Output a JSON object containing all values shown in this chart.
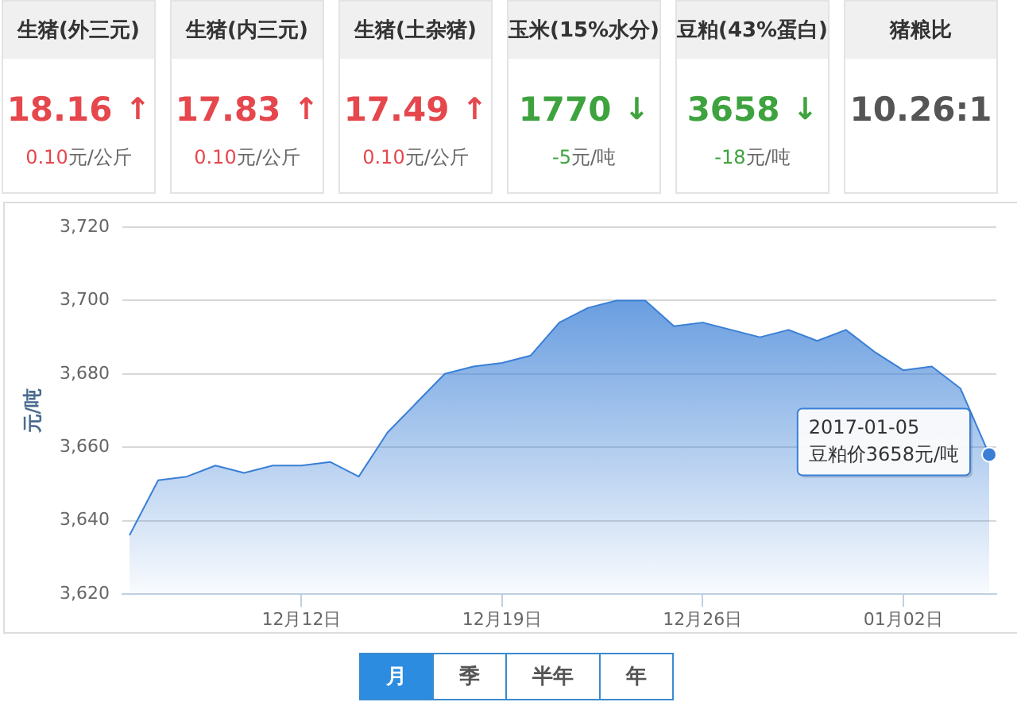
{
  "chart_data": [
    {
      "type": "other",
      "title": "生猪(外三元)",
      "annotations": [
        "18.16",
        "↑",
        "0.10元/公斤"
      ],
      "color": "#e5474d"
    },
    {
      "type": "other",
      "title": "生猪(内三元)",
      "annotations": [
        "17.83",
        "↑",
        "0.10元/公斤"
      ],
      "color": "#e5474d"
    },
    {
      "type": "other",
      "title": "生猪(土杂猪)",
      "annotations": [
        "17.49",
        "↑",
        "0.10元/公斤"
      ],
      "color": "#e5474d"
    },
    {
      "type": "other",
      "title": "玉米(15%水分)",
      "annotations": [
        "1770",
        "↓",
        "-5元/吨"
      ],
      "color": "#3ea33e"
    },
    {
      "type": "other",
      "title": "豆粕(43%蛋白)",
      "annotations": [
        "3658",
        "↓",
        "-18元/吨"
      ],
      "color": "#3ea33e"
    },
    {
      "type": "other",
      "title": "猪粮比",
      "annotations": [
        "10.26:1"
      ],
      "color": "#555555"
    },
    {
      "type": "area",
      "ylabel": "元/吨",
      "color": "#3a7fd6",
      "legend": false,
      "marker": "none",
      "grid": "y",
      "x": [
        "2016-12-06",
        "2016-12-07",
        "2016-12-08",
        "2016-12-09",
        "2016-12-10",
        "2016-12-11",
        "2016-12-12",
        "2016-12-13",
        "2016-12-14",
        "2016-12-15",
        "2016-12-16",
        "2016-12-17",
        "2016-12-18",
        "2016-12-19",
        "2016-12-20",
        "2016-12-21",
        "2016-12-22",
        "2016-12-23",
        "2016-12-24",
        "2016-12-25",
        "2016-12-26",
        "2016-12-27",
        "2016-12-28",
        "2016-12-29",
        "2016-12-30",
        "2016-12-31",
        "2017-01-01",
        "2017-01-02",
        "2017-01-03",
        "2017-01-04",
        "2017-01-05"
      ],
      "values": [
        3636,
        3651,
        3652,
        3655,
        3653,
        3655,
        3655,
        3656,
        3652,
        3664,
        3672,
        3680,
        3682,
        3683,
        3685,
        3694,
        3698,
        3700,
        3700,
        3693,
        3694,
        3692,
        3690,
        3692,
        3689,
        3692,
        3686,
        3681,
        3682,
        3676,
        3658
      ],
      "xlim": [
        "2016-12-05T18:00",
        "2017-01-05T06:00"
      ],
      "xticks": [
        {
          "value": "2016-12-12",
          "label": "12月12日"
        },
        {
          "value": "2016-12-19",
          "label": "12月19日"
        },
        {
          "value": "2016-12-26",
          "label": "12月26日"
        },
        {
          "value": "2017-01-02",
          "label": "01月02日"
        }
      ],
      "ylim": [
        3620,
        3720
      ],
      "yticks": [
        {
          "value": 3620,
          "label": "3,620"
        },
        {
          "value": 3640,
          "label": "3,640"
        },
        {
          "value": 3660,
          "label": "3,660"
        },
        {
          "value": 3680,
          "label": "3,680"
        },
        {
          "value": 3700,
          "label": "3,700"
        },
        {
          "value": 3720,
          "label": "3,720"
        }
      ],
      "annotations": [
        {
          "text": "2017-01-05\n豆粕价3658元/吨",
          "x": "2017-01-05",
          "y": 3658
        },
        "月",
        "季",
        "半年",
        "年"
      ]
    }
  ]
}
